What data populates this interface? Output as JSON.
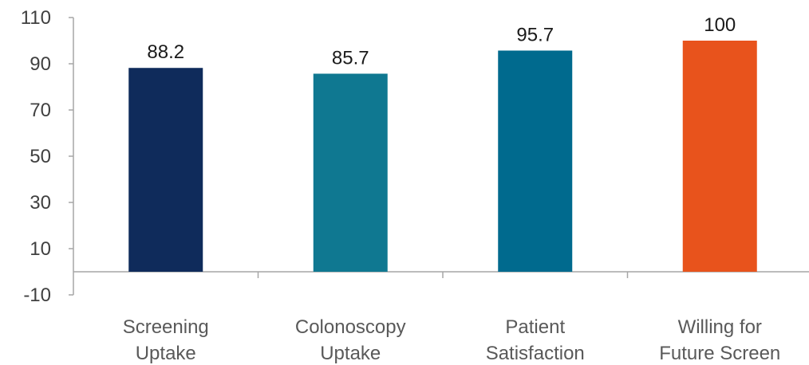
{
  "chart_data": {
    "type": "bar",
    "title": "",
    "xlabel": "",
    "ylabel": "",
    "categories": [
      [
        "Screening",
        "Uptake"
      ],
      [
        "Colonoscopy",
        "Uptake"
      ],
      [
        "Patient",
        "Satisfaction"
      ],
      [
        "Willing for",
        "Future Screen"
      ]
    ],
    "values": [
      88.2,
      85.7,
      95.7,
      100
    ],
    "value_labels": [
      "88.2",
      "85.7",
      "95.7",
      "100"
    ],
    "bar_colors": [
      "#0f2b5b",
      "#0f7891",
      "#006a8e",
      "#e8531c"
    ],
    "ylim": [
      -10,
      110
    ],
    "yticks": [
      -10,
      10,
      30,
      50,
      70,
      90,
      110
    ],
    "ytick_labels": [
      "-10",
      "10",
      "30",
      "50",
      "70",
      "90",
      "110"
    ],
    "grid": false,
    "legend": "none",
    "axis_color": "#a6a6a6"
  }
}
